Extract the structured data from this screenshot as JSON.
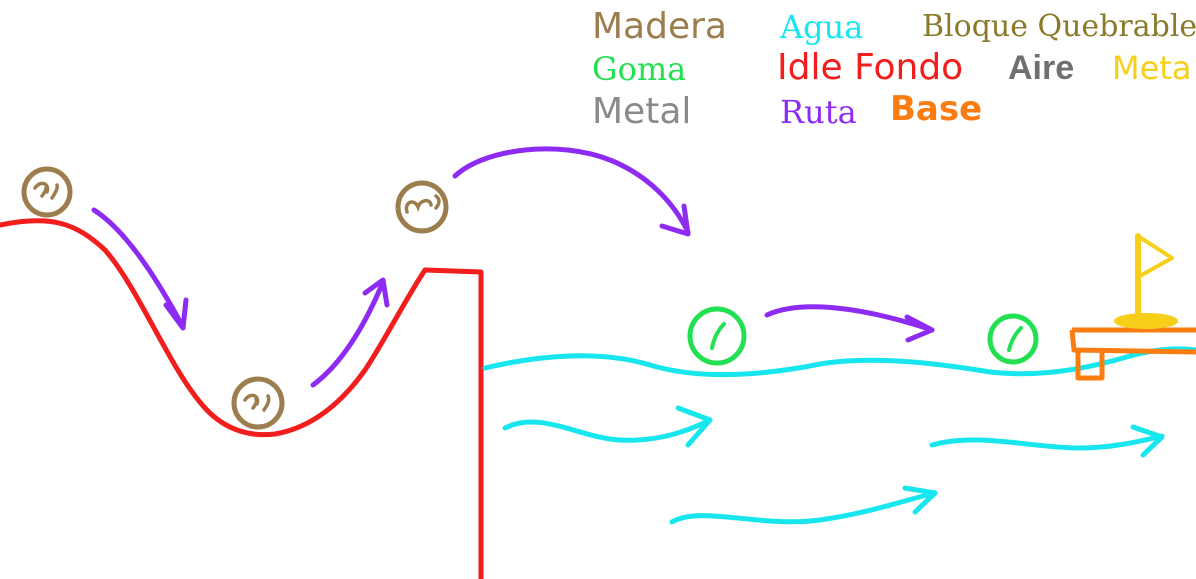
{
  "legend": {
    "madera": {
      "label": "Madera",
      "color": "#9b7d4e"
    },
    "agua": {
      "label": "Agua",
      "color": "#17e6ef"
    },
    "bloque_quebrable": {
      "label": "Bloque Quebrable",
      "color": "#8a7a2a"
    },
    "goma": {
      "label": "Goma",
      "color": "#22e052"
    },
    "idle_fondo": {
      "label": "Idle Fondo",
      "color": "#f21d1d"
    },
    "aire": {
      "label": "Aire",
      "color": "#6f6f6f"
    },
    "meta": {
      "label": "Meta",
      "color": "#f7cf1b"
    },
    "metal": {
      "label": "Metal",
      "color": "#8a8a8a"
    },
    "ruta": {
      "label": "Ruta",
      "color": "#8d2bf2"
    },
    "base": {
      "label": "Base",
      "color": "#fb7d12"
    }
  }
}
